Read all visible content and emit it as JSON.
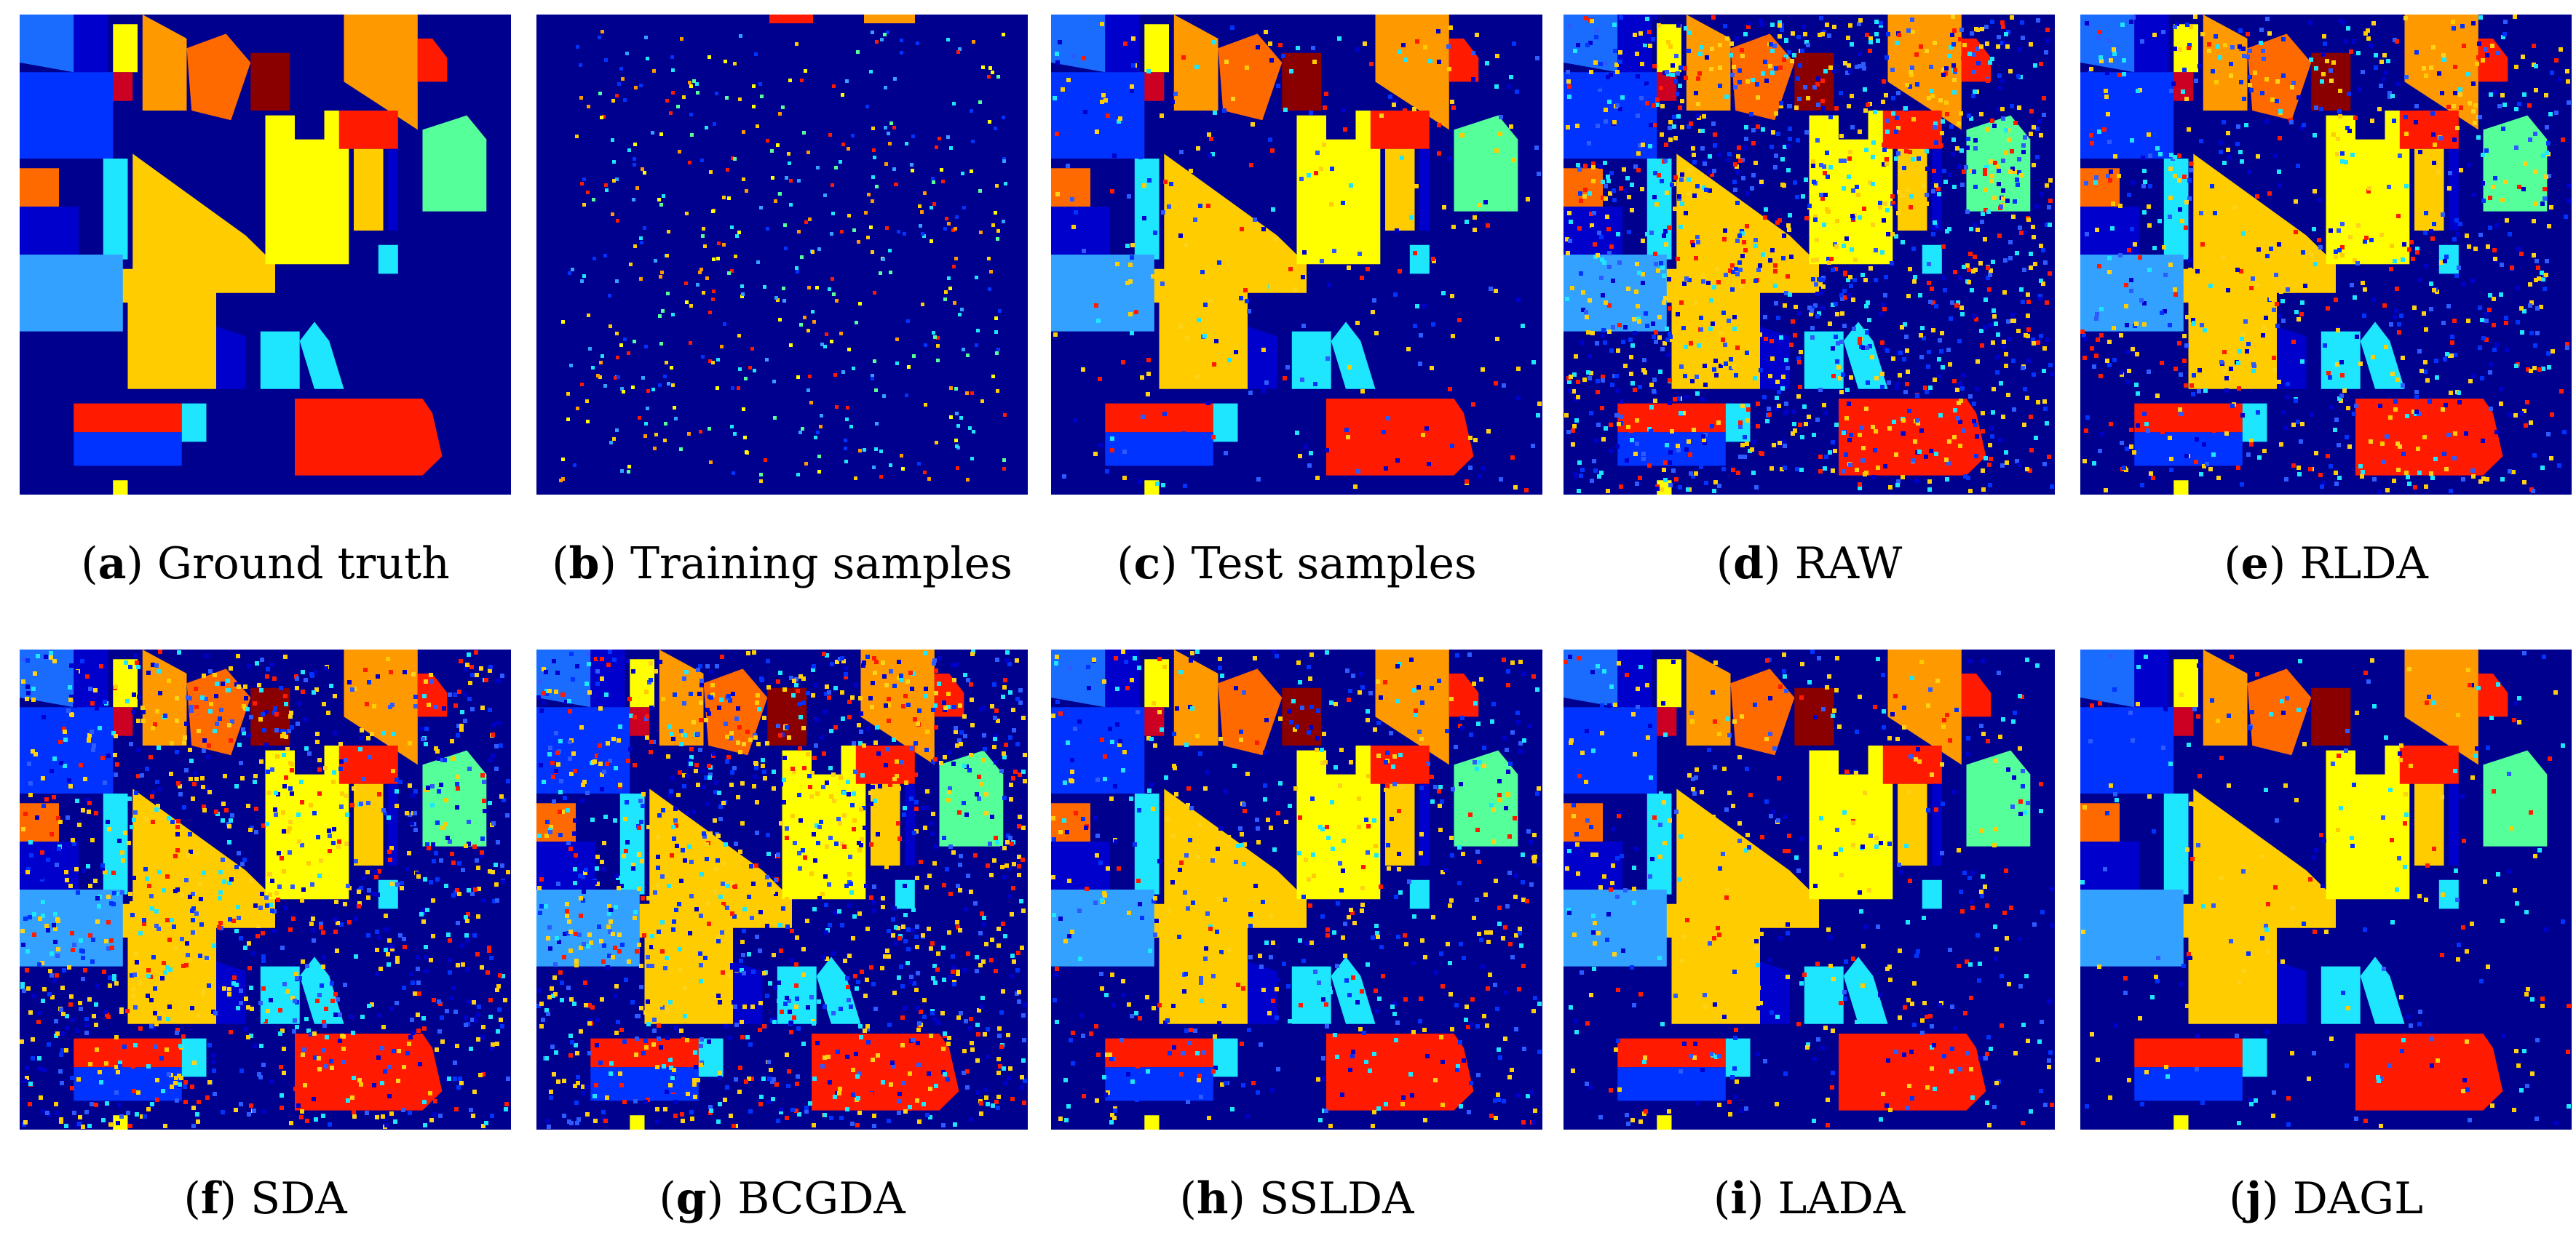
{
  "figure": {
    "colors": {
      "background": "#00008f",
      "dark_blue": "#0000cc",
      "blue": "#0033ff",
      "light_blue": "#1a6cff",
      "sky": "#33a1ff",
      "cyan": "#1ee6ff",
      "mint": "#55ff99",
      "yellow": "#ffff00",
      "gold": "#ffcc00",
      "orange": "#ff9900",
      "dark_orange": "#ff6a00",
      "red": "#ff1a00",
      "crimson": "#cc0022",
      "maroon": "#8a0000",
      "noise_warm": "#ffd21a",
      "noise_cool": "#2d5bff"
    },
    "panels": [
      {
        "letter": "a",
        "label": "Ground truth",
        "kind": "ground-truth"
      },
      {
        "letter": "b",
        "label": "Training samples",
        "kind": "training"
      },
      {
        "letter": "c",
        "label": "Test samples",
        "kind": "test"
      },
      {
        "letter": "d",
        "label": "RAW",
        "kind": "result"
      },
      {
        "letter": "e",
        "label": "RLDA",
        "kind": "result"
      },
      {
        "letter": "f",
        "label": "SDA",
        "kind": "result"
      },
      {
        "letter": "g",
        "label": "BCGDA",
        "kind": "result"
      },
      {
        "letter": "h",
        "label": "SSLDA",
        "kind": "result"
      },
      {
        "letter": "i",
        "label": "LADA",
        "kind": "result"
      },
      {
        "letter": "j",
        "label": "DAGL",
        "kind": "result"
      }
    ]
  }
}
